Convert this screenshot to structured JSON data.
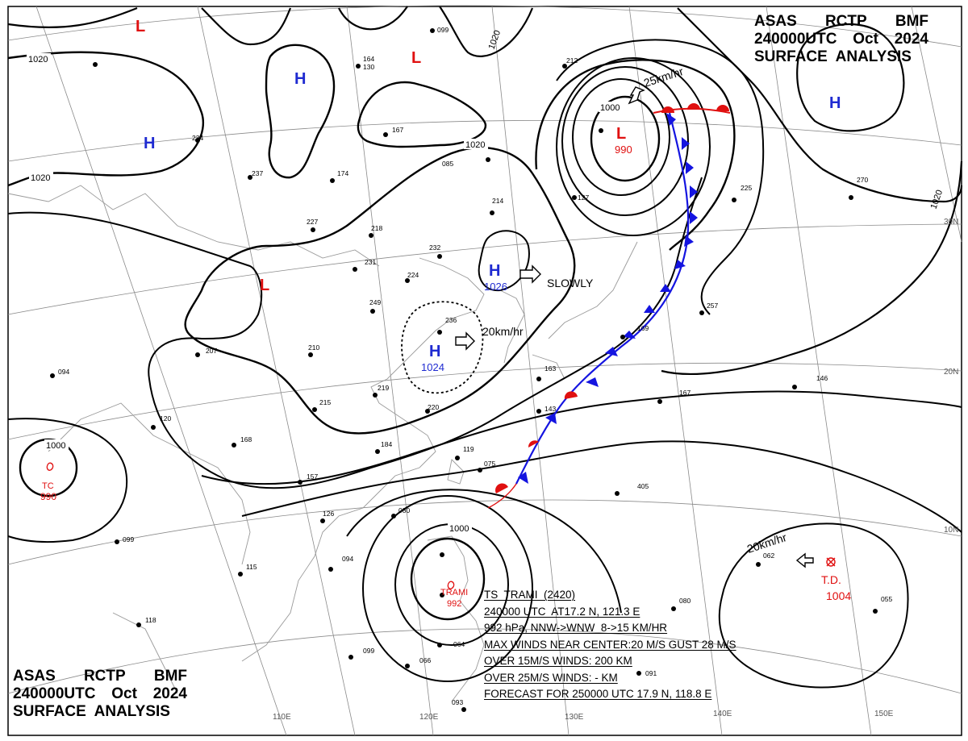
{
  "header_top": {
    "agency": "ASAS",
    "center": "RCTP",
    "office": "BMF",
    "time": "240000UTC",
    "month": "Oct",
    "year": "2024",
    "product": "SURFACE  ANALYSIS"
  },
  "header_bottom": {
    "agency": "ASAS",
    "center": "RCTP",
    "office": "BMF",
    "time": "240000UTC",
    "month": "Oct",
    "year": "2024",
    "product": "SURFACE  ANALYSIS"
  },
  "longitudes": [
    "110E",
    "120E",
    "130E",
    "140E",
    "150E"
  ],
  "latitudes": [
    "30N",
    "20N",
    "10N"
  ],
  "isobar_labels": {
    "nw_1020": "1020",
    "w_1020": "1020",
    "c_1020": "1020",
    "n_1020": "1020",
    "e_1020": "1020",
    "low_1000": "1000",
    "tc_1000": "1000",
    "trami_1000": "1000"
  },
  "pressure_centers": {
    "h_nw": "H",
    "h_w": "H",
    "h_ne": "H",
    "h_c": "H",
    "h_c_value": "1026",
    "h_s": "H",
    "h_s_value": "1024",
    "l_top": "L",
    "l_top2": "L",
    "l_w": "L",
    "l_main": "L",
    "l_main_value": "990"
  },
  "motion_labels": {
    "low_speed": "25km/hr",
    "high_c_motion": "SLOWLY",
    "high_s_speed": "20km/hr",
    "td_speed": "20km/hr"
  },
  "storms": {
    "tc_west_label": "TC",
    "tc_west_value": "990",
    "trami_name": "TRAMI",
    "trami_value": "992",
    "td_label": "T.D.",
    "td_value": "1004"
  },
  "warning_lines": [
    "TS  TRAMI  (2420)",
    "240000 UTC  AT17.2 N, 121.3 E",
    "992 hPa, NNW->WNW  8->15 KM/HR",
    "MAX WINDS NEAR CENTER:20 M/S GUST 28 M/S",
    "OVER 15M/S WINDS: 200 KM",
    "OVER 25M/S WINDS: - KM",
    "FORECAST FOR 250000 UTC 17.9 N, 118.8 E"
  ],
  "station_labels": [
    {
      "id": "s1",
      "text": "164"
    },
    {
      "id": "s2",
      "text": "130"
    },
    {
      "id": "s3",
      "text": "099"
    },
    {
      "id": "s4",
      "text": "234"
    },
    {
      "id": "s5",
      "text": "237"
    },
    {
      "id": "s6",
      "text": "227"
    },
    {
      "id": "s7",
      "text": "174"
    },
    {
      "id": "s8",
      "text": "218"
    },
    {
      "id": "s9",
      "text": "231"
    },
    {
      "id": "s10",
      "text": "232"
    },
    {
      "id": "s11",
      "text": "224"
    },
    {
      "id": "s12",
      "text": "214"
    },
    {
      "id": "s13",
      "text": "249"
    },
    {
      "id": "s14",
      "text": "210"
    },
    {
      "id": "s15",
      "text": "207"
    },
    {
      "id": "s16",
      "text": "219"
    },
    {
      "id": "s17",
      "text": "215"
    },
    {
      "id": "s18",
      "text": "220"
    },
    {
      "id": "s19",
      "text": "184"
    },
    {
      "id": "s20",
      "text": "094"
    },
    {
      "id": "s21",
      "text": "120"
    },
    {
      "id": "s22",
      "text": "168"
    },
    {
      "id": "s23",
      "text": "157"
    },
    {
      "id": "s24",
      "text": "126"
    },
    {
      "id": "s25",
      "text": "099"
    },
    {
      "id": "s26",
      "text": "118"
    },
    {
      "id": "s27",
      "text": "094"
    },
    {
      "id": "s28",
      "text": "115"
    },
    {
      "id": "s29",
      "text": "080"
    },
    {
      "id": "s30",
      "text": "075"
    },
    {
      "id": "s31",
      "text": "119"
    },
    {
      "id": "s32",
      "text": "143"
    },
    {
      "id": "s33",
      "text": "163"
    },
    {
      "id": "s34",
      "text": "169"
    },
    {
      "id": "s35",
      "text": "167"
    },
    {
      "id": "s36",
      "text": "257"
    },
    {
      "id": "s37",
      "text": "146"
    },
    {
      "id": "s38",
      "text": "270"
    },
    {
      "id": "s39",
      "text": "225"
    },
    {
      "id": "s40",
      "text": "405"
    },
    {
      "id": "s41",
      "text": "080"
    },
    {
      "id": "s42",
      "text": "062"
    },
    {
      "id": "s43",
      "text": "055"
    },
    {
      "id": "s44",
      "text": "099"
    },
    {
      "id": "s45",
      "text": "066"
    },
    {
      "id": "s46",
      "text": "064"
    },
    {
      "id": "s47",
      "text": "212"
    },
    {
      "id": "s48",
      "text": "127"
    },
    {
      "id": "s49",
      "text": "167"
    },
    {
      "id": "s50",
      "text": "085"
    },
    {
      "id": "s51",
      "text": "236"
    },
    {
      "id": "s52",
      "text": "091"
    },
    {
      "id": "s53",
      "text": "093"
    }
  ],
  "colors": {
    "isobar": "#000000",
    "grid": "#808080",
    "coast": "#a0a0a0",
    "high": "#1f2bd1",
    "low": "#e01010",
    "cold_front": "#1414e0",
    "warm_front": "#e01010"
  }
}
